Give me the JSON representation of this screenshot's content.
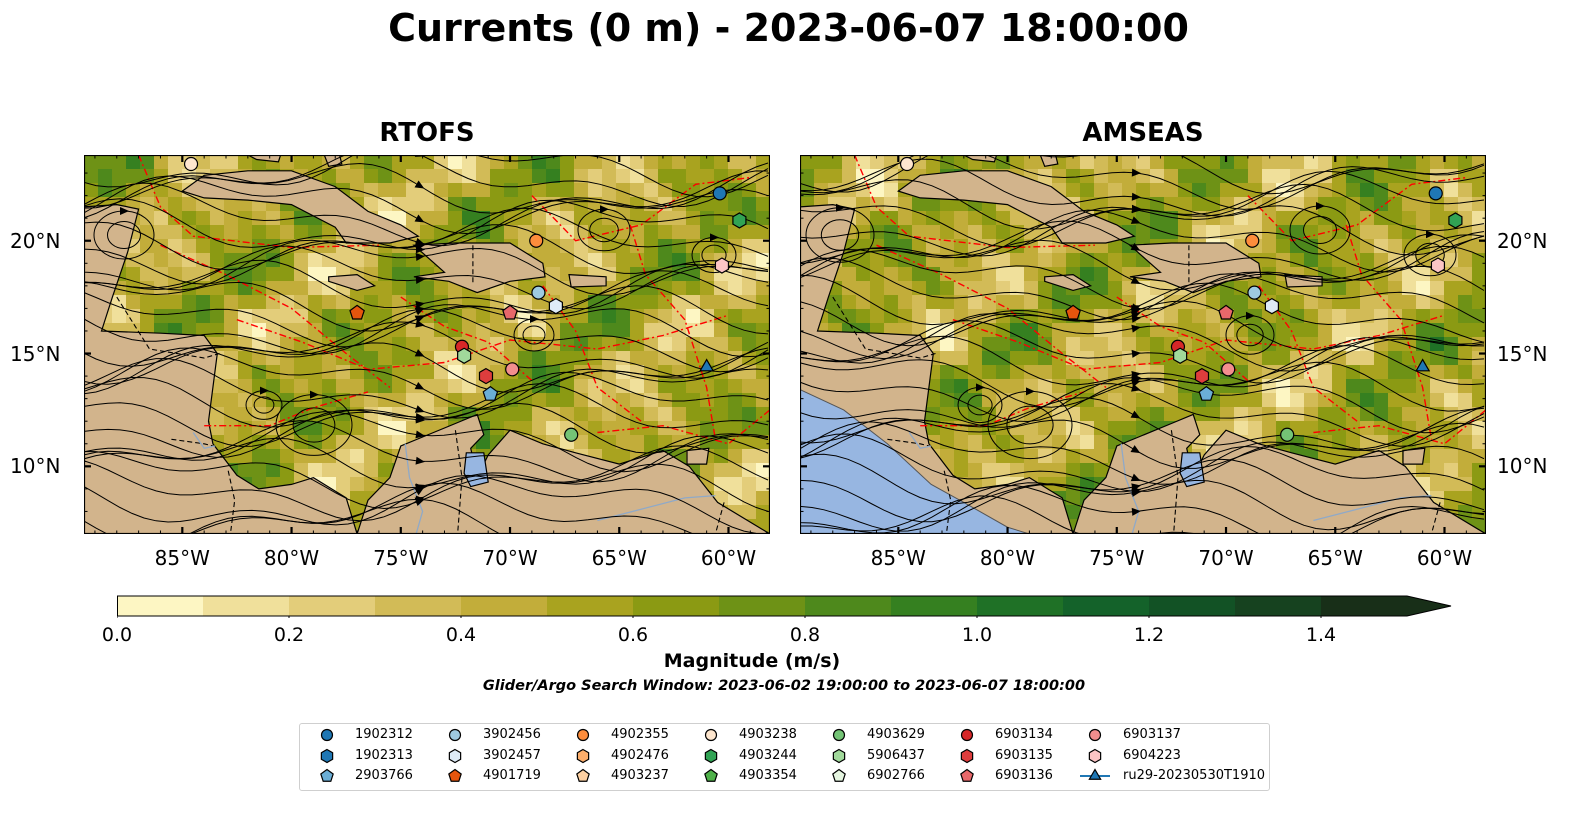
{
  "title": "Currents (0 m) - 2023-06-07 18:00:00",
  "panels": [
    {
      "title": "RTOFS"
    },
    {
      "title": "AMSEAS"
    }
  ],
  "axes": {
    "lon_labels": [
      "85°W",
      "80°W",
      "75°W",
      "70°W",
      "65°W",
      "60°W"
    ],
    "lon_values": [
      -85,
      -80,
      -75,
      -70,
      -65,
      -60
    ],
    "lat_labels": [
      "20°N",
      "15°N",
      "10°N"
    ],
    "lat_values": [
      20,
      15,
      10
    ],
    "lon_range": [
      -89.5,
      -58.1
    ],
    "lat_range": [
      7.0,
      23.8
    ]
  },
  "colorbar": {
    "label": "Magnitude (m/s)",
    "tick_labels": [
      "0.0",
      "0.2",
      "0.4",
      "0.6",
      "0.8",
      "1.0",
      "1.2",
      "1.4"
    ],
    "tick_values": [
      0,
      0.2,
      0.4,
      0.6,
      0.8,
      1.0,
      1.2,
      1.4
    ],
    "min": 0,
    "max": 1.5,
    "extend": "max",
    "colors": [
      "#fdf6c3",
      "#f0e09b",
      "#e3cd7a",
      "#d2bb57",
      "#c2ad3a",
      "#a9a31f",
      "#8b9a13",
      "#6e9216",
      "#4e891c",
      "#358020",
      "#1f7126",
      "#14622a",
      "#125225",
      "#16421f",
      "#182f18"
    ]
  },
  "search_window": "Glider/Argo Search Window: 2023-06-02 19:00:00 to 2023-06-07 18:00:00",
  "colors": {
    "land": "#d2b48c",
    "lake": "#97b6e1",
    "eez_boundary": "#ff0000",
    "streamline": "#000000"
  },
  "legend": [
    {
      "label": "1902312",
      "marker": "circle",
      "color": "#1f77b4"
    },
    {
      "label": "1902313",
      "marker": "hexagon",
      "color": "#1f77b4"
    },
    {
      "label": "2903766",
      "marker": "pentagon",
      "color": "#6baed6"
    },
    {
      "label": "3902456",
      "marker": "circle",
      "color": "#9ecae1"
    },
    {
      "label": "3902457",
      "marker": "hexagon",
      "color": "#deebf7"
    },
    {
      "label": "4901719",
      "marker": "pentagon",
      "color": "#e6550d"
    },
    {
      "label": "4902355",
      "marker": "circle",
      "color": "#fd8d3c"
    },
    {
      "label": "4902476",
      "marker": "hexagon",
      "color": "#fdae6b"
    },
    {
      "label": "4903237",
      "marker": "pentagon",
      "color": "#fdd0a2"
    },
    {
      "label": "4903238",
      "marker": "circle",
      "color": "#fee6ce"
    },
    {
      "label": "4903244",
      "marker": "hexagon",
      "color": "#31a354"
    },
    {
      "label": "4903354",
      "marker": "pentagon",
      "color": "#4fb14a"
    },
    {
      "label": "4903629",
      "marker": "circle",
      "color": "#74c476"
    },
    {
      "label": "5906437",
      "marker": "hexagon",
      "color": "#a1d99b"
    },
    {
      "label": "6902766",
      "marker": "pentagon",
      "color": "#e5f5e0"
    },
    {
      "label": "6903134",
      "marker": "circle",
      "color": "#d62728"
    },
    {
      "label": "6903135",
      "marker": "hexagon",
      "color": "#de3d3d"
    },
    {
      "label": "6903136",
      "marker": "pentagon",
      "color": "#e8686a"
    },
    {
      "label": "6903137",
      "marker": "circle",
      "color": "#f28e8e"
    },
    {
      "label": "6904223",
      "marker": "hexagon",
      "color": "#fcc5c5"
    },
    {
      "label": "ru29-20230530T1910",
      "marker": "triangle",
      "color": "#1f77b4"
    }
  ],
  "floats": [
    {
      "id": "4903238",
      "lon": -84.6,
      "lat": 23.4,
      "marker": "circle",
      "color": "#fee6ce"
    },
    {
      "id": "1902312",
      "lon": -60.4,
      "lat": 22.1,
      "marker": "circle",
      "color": "#1f77b4"
    },
    {
      "id": "4903244",
      "lon": -59.5,
      "lat": 20.9,
      "marker": "hexagon",
      "color": "#31a354"
    },
    {
      "id": "4902355",
      "lon": -68.8,
      "lat": 20.0,
      "marker": "circle",
      "color": "#fd8d3c"
    },
    {
      "id": "6904223",
      "lon": -60.3,
      "lat": 18.9,
      "marker": "hexagon",
      "color": "#fcc5c5"
    },
    {
      "id": "3902456",
      "lon": -68.7,
      "lat": 17.7,
      "marker": "circle",
      "color": "#9ecae1"
    },
    {
      "id": "3902457",
      "lon": -67.9,
      "lat": 17.1,
      "marker": "hexagon",
      "color": "#deebf7"
    },
    {
      "id": "4901719",
      "lon": -77.0,
      "lat": 16.8,
      "marker": "pentagon",
      "color": "#e6550d"
    },
    {
      "id": "6903136",
      "lon": -70.0,
      "lat": 16.8,
      "marker": "pentagon",
      "color": "#e8686a"
    },
    {
      "id": "6903134",
      "lon": -72.2,
      "lat": 15.3,
      "marker": "circle",
      "color": "#d62728"
    },
    {
      "id": "5906437",
      "lon": -72.1,
      "lat": 14.9,
      "marker": "hexagon",
      "color": "#a1d99b"
    },
    {
      "id": "6903137",
      "lon": -69.9,
      "lat": 14.3,
      "marker": "circle",
      "color": "#f28e8e"
    },
    {
      "id": "6903135",
      "lon": -71.1,
      "lat": 14.0,
      "marker": "hexagon",
      "color": "#de3d3d"
    },
    {
      "id": "2903766",
      "lon": -70.9,
      "lat": 13.2,
      "marker": "pentagon",
      "color": "#6baed6"
    },
    {
      "id": "4903629",
      "lon": -67.2,
      "lat": 11.4,
      "marker": "circle",
      "color": "#74c476"
    },
    {
      "id": "ru29-20230530T1910",
      "lon": -61.0,
      "lat": 14.4,
      "marker": "triangle",
      "color": "#1f77b4"
    }
  ]
}
